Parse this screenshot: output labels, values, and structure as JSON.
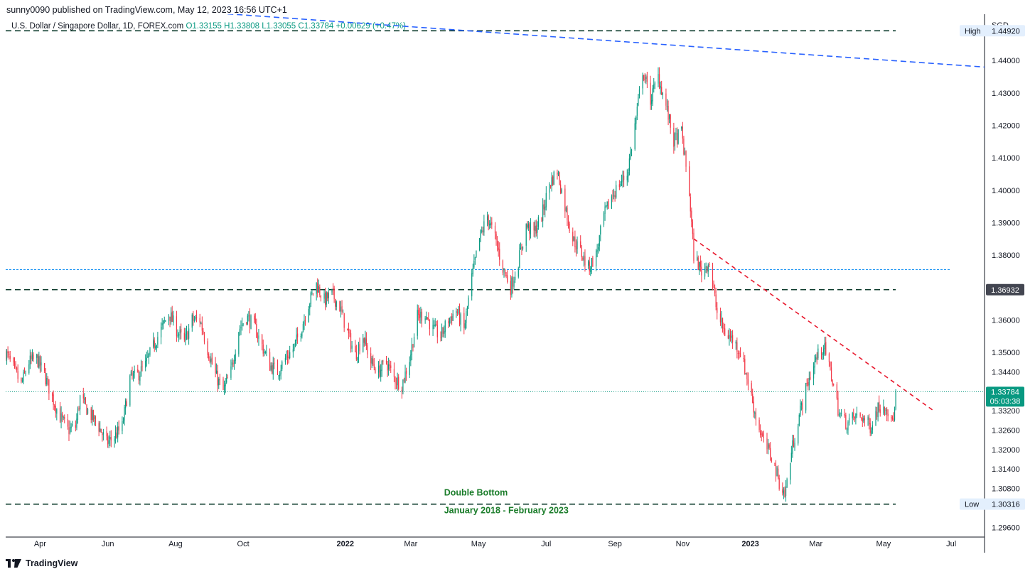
{
  "header": {
    "publisher_line": "sunny0090 published on TradingView.com, May 12, 2023 16:56 UTC+1",
    "symbol_title": "U.S. Dollar / Singapore Dollar, 1D, FOREX.com",
    "ohlc": {
      "o": "O1.33155",
      "h": "H1.33808",
      "l": "L1.33055",
      "c": "C1.33784",
      "change": "+0.00629 (+0.47%)"
    }
  },
  "footer": {
    "brand": "TradingView"
  },
  "colors": {
    "up": "#089981",
    "down": "#f23645",
    "axis": "#131722",
    "text": "#131722",
    "blue_line": "#2962ff",
    "light_blue_line": "#2196f3",
    "dark_dashed": "#0f3d2e",
    "red_dashed": "#e8192e",
    "annotation": "#1b7d2b",
    "price_tag": "#089981",
    "level_tag": "#434651",
    "label_bg": "#e3effd"
  },
  "chart_data": {
    "type": "candlestick",
    "y_axis_title": "SGD",
    "ylim": [
      1.293,
      1.4543
    ],
    "x_range": [
      "2021-03-01",
      "2023-07-31"
    ],
    "x_ticks": [
      {
        "date": "2021-04-01",
        "label": "Apr"
      },
      {
        "date": "2021-06-01",
        "label": "Jun"
      },
      {
        "date": "2021-08-01",
        "label": "Aug"
      },
      {
        "date": "2021-10-01",
        "label": "Oct"
      },
      {
        "date": "2022-01-01",
        "label": "2022"
      },
      {
        "date": "2022-03-01",
        "label": "Mar"
      },
      {
        "date": "2022-05-01",
        "label": "May"
      },
      {
        "date": "2022-07-01",
        "label": "Jul"
      },
      {
        "date": "2022-09-01",
        "label": "Sep"
      },
      {
        "date": "2022-11-01",
        "label": "Nov"
      },
      {
        "date": "2023-01-01",
        "label": "2023"
      },
      {
        "date": "2023-03-01",
        "label": "Mar"
      },
      {
        "date": "2023-05-01",
        "label": "May"
      },
      {
        "date": "2023-07-01",
        "label": "Jul"
      }
    ],
    "y_ticks": [
      "1.44000",
      "1.43000",
      "1.42000",
      "1.41000",
      "1.40000",
      "1.39000",
      "1.38000",
      "1.36000",
      "1.35000",
      "1.34400",
      "1.33200",
      "1.32600",
      "1.32000",
      "1.31400",
      "1.30800",
      "1.29600"
    ],
    "price_path": [
      {
        "date": "2021-03-01",
        "close": 1.35
      },
      {
        "date": "2021-03-08",
        "close": 1.345
      },
      {
        "date": "2021-03-15",
        "close": 1.34
      },
      {
        "date": "2021-03-22",
        "close": 1.347
      },
      {
        "date": "2021-03-29",
        "close": 1.348
      },
      {
        "date": "2021-04-05",
        "close": 1.343
      },
      {
        "date": "2021-04-12",
        "close": 1.336
      },
      {
        "date": "2021-04-19",
        "close": 1.33
      },
      {
        "date": "2021-04-26",
        "close": 1.326
      },
      {
        "date": "2021-05-03",
        "close": 1.327
      },
      {
        "date": "2021-05-07",
        "close": 1.336
      },
      {
        "date": "2021-05-14",
        "close": 1.332
      },
      {
        "date": "2021-05-24",
        "close": 1.327
      },
      {
        "date": "2021-05-31",
        "close": 1.322
      },
      {
        "date": "2021-06-07",
        "close": 1.324
      },
      {
        "date": "2021-06-14",
        "close": 1.327
      },
      {
        "date": "2021-06-21",
        "close": 1.342
      },
      {
        "date": "2021-06-28",
        "close": 1.343
      },
      {
        "date": "2021-07-05",
        "close": 1.346
      },
      {
        "date": "2021-07-12",
        "close": 1.352
      },
      {
        "date": "2021-07-19",
        "close": 1.357
      },
      {
        "date": "2021-07-26",
        "close": 1.362
      },
      {
        "date": "2021-08-02",
        "close": 1.357
      },
      {
        "date": "2021-08-09",
        "close": 1.353
      },
      {
        "date": "2021-08-16",
        "close": 1.36
      },
      {
        "date": "2021-08-23",
        "close": 1.36
      },
      {
        "date": "2021-08-30",
        "close": 1.351
      },
      {
        "date": "2021-09-06",
        "close": 1.343
      },
      {
        "date": "2021-09-13",
        "close": 1.338
      },
      {
        "date": "2021-09-20",
        "close": 1.344
      },
      {
        "date": "2021-09-27",
        "close": 1.357
      },
      {
        "date": "2021-10-04",
        "close": 1.361
      },
      {
        "date": "2021-10-11",
        "close": 1.358
      },
      {
        "date": "2021-10-18",
        "close": 1.352
      },
      {
        "date": "2021-10-25",
        "close": 1.346
      },
      {
        "date": "2021-11-01",
        "close": 1.344
      },
      {
        "date": "2021-11-08",
        "close": 1.348
      },
      {
        "date": "2021-11-15",
        "close": 1.351
      },
      {
        "date": "2021-11-22",
        "close": 1.357
      },
      {
        "date": "2021-11-29",
        "close": 1.365
      },
      {
        "date": "2021-12-06",
        "close": 1.371
      },
      {
        "date": "2021-12-13",
        "close": 1.366
      },
      {
        "date": "2021-12-20",
        "close": 1.368
      },
      {
        "date": "2021-12-27",
        "close": 1.364
      },
      {
        "date": "2022-01-03",
        "close": 1.356
      },
      {
        "date": "2022-01-10",
        "close": 1.349
      },
      {
        "date": "2022-01-17",
        "close": 1.355
      },
      {
        "date": "2022-01-24",
        "close": 1.347
      },
      {
        "date": "2022-01-31",
        "close": 1.344
      },
      {
        "date": "2022-02-07",
        "close": 1.347
      },
      {
        "date": "2022-02-14",
        "close": 1.342
      },
      {
        "date": "2022-02-21",
        "close": 1.34
      },
      {
        "date": "2022-02-28",
        "close": 1.348
      },
      {
        "date": "2022-03-07",
        "close": 1.361
      },
      {
        "date": "2022-03-14",
        "close": 1.362
      },
      {
        "date": "2022-03-21",
        "close": 1.357
      },
      {
        "date": "2022-03-28",
        "close": 1.355
      },
      {
        "date": "2022-04-04",
        "close": 1.36
      },
      {
        "date": "2022-04-11",
        "close": 1.363
      },
      {
        "date": "2022-04-18",
        "close": 1.357
      },
      {
        "date": "2022-04-25",
        "close": 1.373
      },
      {
        "date": "2022-05-02",
        "close": 1.385
      },
      {
        "date": "2022-05-09",
        "close": 1.392
      },
      {
        "date": "2022-05-16",
        "close": 1.385
      },
      {
        "date": "2022-05-23",
        "close": 1.376
      },
      {
        "date": "2022-05-30",
        "close": 1.37
      },
      {
        "date": "2022-06-06",
        "close": 1.378
      },
      {
        "date": "2022-06-13",
        "close": 1.389
      },
      {
        "date": "2022-06-20",
        "close": 1.387
      },
      {
        "date": "2022-06-27",
        "close": 1.392
      },
      {
        "date": "2022-07-04",
        "close": 1.402
      },
      {
        "date": "2022-07-11",
        "close": 1.406
      },
      {
        "date": "2022-07-18",
        "close": 1.395
      },
      {
        "date": "2022-07-25",
        "close": 1.385
      },
      {
        "date": "2022-08-01",
        "close": 1.381
      },
      {
        "date": "2022-08-08",
        "close": 1.376
      },
      {
        "date": "2022-08-15",
        "close": 1.38
      },
      {
        "date": "2022-08-22",
        "close": 1.392
      },
      {
        "date": "2022-08-29",
        "close": 1.398
      },
      {
        "date": "2022-09-05",
        "close": 1.402
      },
      {
        "date": "2022-09-12",
        "close": 1.405
      },
      {
        "date": "2022-09-19",
        "close": 1.42
      },
      {
        "date": "2022-09-26",
        "close": 1.437
      },
      {
        "date": "2022-10-03",
        "close": 1.428
      },
      {
        "date": "2022-10-10",
        "close": 1.435
      },
      {
        "date": "2022-10-17",
        "close": 1.426
      },
      {
        "date": "2022-10-24",
        "close": 1.415
      },
      {
        "date": "2022-10-31",
        "close": 1.418
      },
      {
        "date": "2022-11-07",
        "close": 1.399
      },
      {
        "date": "2022-11-11",
        "close": 1.38
      },
      {
        "date": "2022-11-18",
        "close": 1.375
      },
      {
        "date": "2022-11-25",
        "close": 1.378
      },
      {
        "date": "2022-12-02",
        "close": 1.362
      },
      {
        "date": "2022-12-09",
        "close": 1.356
      },
      {
        "date": "2022-12-16",
        "close": 1.354
      },
      {
        "date": "2022-12-23",
        "close": 1.35
      },
      {
        "date": "2022-12-30",
        "close": 1.341
      },
      {
        "date": "2023-01-06",
        "close": 1.33
      },
      {
        "date": "2023-01-13",
        "close": 1.322
      },
      {
        "date": "2023-01-20",
        "close": 1.318
      },
      {
        "date": "2023-01-27",
        "close": 1.31
      },
      {
        "date": "2023-02-01",
        "close": 1.306
      },
      {
        "date": "2023-02-08",
        "close": 1.321
      },
      {
        "date": "2023-02-15",
        "close": 1.332
      },
      {
        "date": "2023-02-22",
        "close": 1.341
      },
      {
        "date": "2023-03-01",
        "close": 1.348
      },
      {
        "date": "2023-03-08",
        "close": 1.352
      },
      {
        "date": "2023-03-15",
        "close": 1.343
      },
      {
        "date": "2023-03-22",
        "close": 1.331
      },
      {
        "date": "2023-03-29",
        "close": 1.328
      },
      {
        "date": "2023-04-05",
        "close": 1.33
      },
      {
        "date": "2023-04-12",
        "close": 1.33
      },
      {
        "date": "2023-04-19",
        "close": 1.327
      },
      {
        "date": "2023-04-26",
        "close": 1.333
      },
      {
        "date": "2023-05-03",
        "close": 1.334
      },
      {
        "date": "2023-05-08",
        "close": 1.328
      },
      {
        "date": "2023-05-11",
        "close": 1.3316
      },
      {
        "date": "2023-05-12",
        "close": 1.33784
      }
    ],
    "current_price": {
      "value": 1.33784,
      "label": "1.33784",
      "countdown": "05:03:38"
    },
    "levels": [
      {
        "name": "high",
        "value": 1.4492,
        "label": "High",
        "value_label": "1.44920",
        "start": "2021-03-01",
        "end": "2023-05-12",
        "style": "dark-dashed"
      },
      {
        "name": "low",
        "value": 1.30316,
        "label": "Low",
        "value_label": "1.30316",
        "start": "2021-03-01",
        "end": "2023-05-12",
        "style": "dark-dashed"
      },
      {
        "name": "level-1-36932",
        "value": 1.36932,
        "value_label": "1.36932",
        "start": "2021-03-01",
        "end": "2023-05-12",
        "style": "dark-dashed"
      },
      {
        "name": "level-1-3755",
        "value": 1.3755,
        "start": "2021-03-01",
        "end": "2023-06-30",
        "style": "light-blue-dashed"
      }
    ],
    "trendlines": [
      {
        "name": "long-term-downtrend",
        "from": {
          "date": "2021-06-01",
          "value": 1.457
        },
        "to": {
          "date": "2023-07-31",
          "value": 1.438
        },
        "style": "blue-dashed"
      },
      {
        "name": "short-term-downtrend",
        "from": {
          "date": "2022-11-11",
          "value": 1.385
        },
        "to": {
          "date": "2023-06-15",
          "value": 1.332
        },
        "style": "red-dashed"
      }
    ],
    "annotations": {
      "pattern": "Double Bottom",
      "period": "January 2018 - February 2023"
    }
  }
}
